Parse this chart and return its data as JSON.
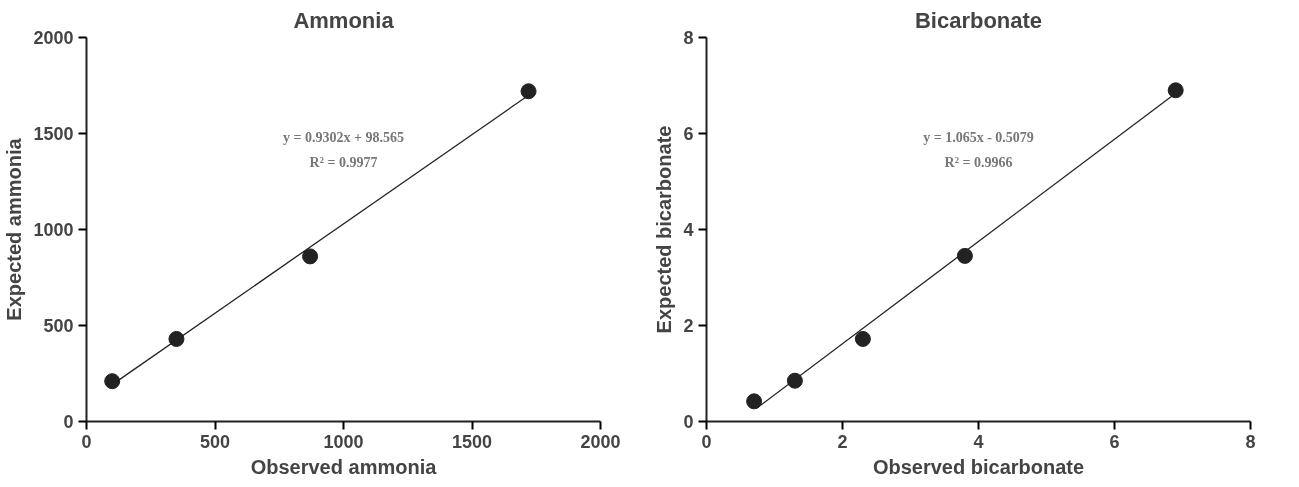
{
  "chart_data": [
    {
      "type": "scatter",
      "title": "Ammonia",
      "xlabel": "Observed ammonia",
      "ylabel": "Expected ammonia",
      "xlim": [
        0,
        2000
      ],
      "ylim": [
        0,
        2000
      ],
      "xticks": [
        0,
        500,
        1000,
        1500,
        2000
      ],
      "yticks": [
        0,
        500,
        1000,
        1500,
        2000
      ],
      "grid": false,
      "series": [
        {
          "color": "#222222",
          "marker": "circle",
          "x": [
            100,
            350,
            870,
            1720
          ],
          "values": [
            210,
            430,
            860,
            1720
          ]
        },
        {
          "type": "line",
          "color": "#222222",
          "x": [
            100,
            1720
          ],
          "values": [
            192,
            1699
          ]
        }
      ],
      "annotations": [
        "y = 0.9302x + 98.565",
        "R² = 0.9977"
      ]
    },
    {
      "type": "scatter",
      "title": "Bicarbonate",
      "xlabel": "Observed bicarbonate",
      "ylabel": "Expected bicarbonate",
      "xlim": [
        0,
        8
      ],
      "ylim": [
        0,
        8
      ],
      "xticks": [
        0,
        2,
        4,
        6,
        8
      ],
      "yticks": [
        0,
        2,
        4,
        6,
        8
      ],
      "grid": false,
      "series": [
        {
          "color": "#222222",
          "marker": "circle",
          "x": [
            0.7,
            1.3,
            2.3,
            3.8,
            6.9
          ],
          "values": [
            0.42,
            0.85,
            1.72,
            3.45,
            6.9
          ]
        },
        {
          "type": "line",
          "color": "#222222",
          "x": [
            0.75,
            6.9
          ],
          "values": [
            0.29,
            6.84
          ]
        }
      ],
      "annotations": [
        "y = 1.065x - 0.5079",
        "R² = 0.9966"
      ]
    }
  ]
}
